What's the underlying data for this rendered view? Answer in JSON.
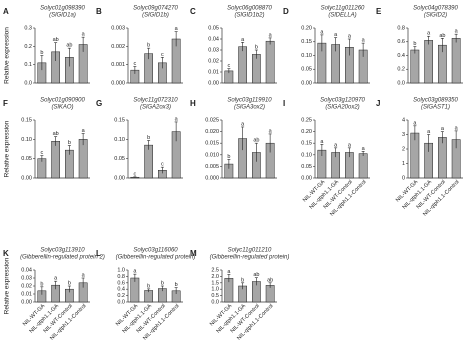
{
  "y_axis_label": "Relative expression",
  "categories": [
    "NIL-WT-GA",
    "NIL-qtph1.1-GA",
    "NIL-WT-Control",
    "NIL-qtph1.1-Control"
  ],
  "chart_data": [
    {
      "type": "bar",
      "letter": "A",
      "title": "Solyc01g098390",
      "subtitle": "(SlGID1a)",
      "color": "#a6a6a6",
      "values": [
        0.11,
        0.17,
        0.14,
        0.21
      ],
      "errors": [
        0.04,
        0.05,
        0.05,
        0.04
      ],
      "annotations": [
        "b",
        "ab",
        "ab",
        "a"
      ],
      "ylim": [
        0,
        0.3
      ],
      "yticks": [
        {
          "value": 0,
          "label": "0.0"
        },
        0.1,
        0.2,
        0.3
      ]
    },
    {
      "type": "bar",
      "letter": "B",
      "title": "Solyc09g074270",
      "subtitle": "(SlGID1b)",
      "color": "#a6a6a6",
      "values": [
        0.0007,
        0.0016,
        0.0011,
        0.0024
      ],
      "errors": [
        0.0002,
        0.0003,
        0.0003,
        0.0004
      ],
      "annotations": [
        "c",
        "b",
        "c",
        "a"
      ],
      "ylim": [
        0,
        0.003
      ],
      "yticks": [
        {
          "value": 0,
          "label": "0.000"
        },
        0.001,
        0.002,
        0.003
      ]
    },
    {
      "type": "bar",
      "letter": "C",
      "title": "Solyc06g008870",
      "subtitle": "(SlGID1b2)",
      "color": "#a6a6a6",
      "values": [
        0.011,
        0.033,
        0.026,
        0.038
      ],
      "errors": [
        0.002,
        0.004,
        0.004,
        0.003
      ],
      "annotations": [
        "c",
        "a",
        "b",
        "a"
      ],
      "ylim": [
        0,
        0.05
      ],
      "yticks": [
        {
          "value": 0,
          "label": "0.00"
        },
        0.01,
        0.02,
        0.03,
        0.04,
        0.05
      ]
    },
    {
      "type": "bar",
      "letter": "D",
      "title": "Solyc11g011260",
      "subtitle": "(SlDELLA)",
      "color": "#a6a6a6",
      "values": [
        0.145,
        0.14,
        0.13,
        0.12
      ],
      "errors": [
        0.03,
        0.025,
        0.03,
        0.025
      ],
      "annotations": [
        "a",
        "a",
        "a",
        "a"
      ],
      "ylim": [
        0,
        0.2
      ],
      "yticks": [
        {
          "value": 0,
          "label": "0.00"
        },
        0.05,
        {
          "value": 0.1,
          "label": "0.10"
        },
        0.15,
        {
          "value": 0.2,
          "label": "0.20"
        }
      ]
    },
    {
      "type": "bar",
      "letter": "E",
      "title": "Solyc04g078390",
      "subtitle": "(SlGID2)",
      "color": "#a6a6a6",
      "values": [
        0.48,
        0.62,
        0.55,
        0.65
      ],
      "errors": [
        0.05,
        0.06,
        0.1,
        0.06
      ],
      "annotations": [
        "b",
        "a",
        "ab",
        "a"
      ],
      "ylim": [
        0,
        0.8
      ],
      "yticks": [
        {
          "value": 0,
          "label": "0.0"
        },
        0.2,
        0.4,
        0.6,
        0.8
      ]
    },
    {
      "type": "bar",
      "letter": "F",
      "title": "Solyc01g090900",
      "subtitle": "(SlKAO)",
      "color": "#a6a6a6",
      "values": [
        0.05,
        0.095,
        0.072,
        0.1
      ],
      "errors": [
        0.008,
        0.012,
        0.012,
        0.015
      ],
      "annotations": [
        "c",
        "ab",
        "b",
        "a"
      ],
      "ylim": [
        0,
        0.15
      ],
      "yticks": [
        {
          "value": 0,
          "label": "0.00"
        },
        0.05,
        {
          "value": 0.1,
          "label": "0.10"
        },
        0.15
      ]
    },
    {
      "type": "bar",
      "letter": "G",
      "title": "Solyc11g072310",
      "subtitle": "(SlGA2ox3)",
      "color": "#a6a6a6",
      "values": [
        0.002,
        0.085,
        0.02,
        0.12
      ],
      "errors": [
        0.001,
        0.012,
        0.008,
        0.025
      ],
      "annotations": [
        "c",
        "b",
        "c",
        "a"
      ],
      "ylim": [
        0,
        0.15
      ],
      "yticks": [
        {
          "value": 0,
          "label": "0.00"
        },
        0.05,
        {
          "value": 0.1,
          "label": "0.10"
        },
        0.15
      ]
    },
    {
      "type": "bar",
      "letter": "H",
      "title": "Solyc03g119910",
      "subtitle": "(SlGA3ox2)",
      "color": "#a6a6a6",
      "values": [
        0.006,
        0.017,
        0.011,
        0.015
      ],
      "errors": [
        0.002,
        0.005,
        0.004,
        0.004
      ],
      "annotations": [
        "b",
        "a",
        "ab",
        "a"
      ],
      "ylim": [
        0,
        0.025
      ],
      "yticks": [
        {
          "value": 0,
          "label": "0.000"
        },
        0.005,
        {
          "value": 0.01,
          "label": "0.010"
        },
        0.015,
        {
          "value": 0.02,
          "label": "0.020"
        },
        0.025
      ]
    },
    {
      "type": "bar",
      "letter": "I",
      "title": "Solyc03g120970",
      "subtitle": "(SlGA20ox2)",
      "color": "#a6a6a6",
      "values": [
        0.12,
        0.11,
        0.11,
        0.105
      ],
      "errors": [
        0.025,
        0.02,
        0.02,
        0.01
      ],
      "annotations": [
        "a",
        "a",
        "a",
        "a"
      ],
      "ylim": [
        0,
        0.25
      ],
      "yticks": [
        {
          "value": 0,
          "label": "0.00"
        },
        0.05,
        {
          "value": 0.1,
          "label": "0.10"
        },
        0.15,
        {
          "value": 0.2,
          "label": "0.20"
        },
        0.25
      ]
    },
    {
      "type": "bar",
      "letter": "J",
      "title": "Solyc03g089350",
      "subtitle": "(SlGAST1)",
      "color": "#a6a6a6",
      "values": [
        3.1,
        2.4,
        2.8,
        2.65
      ],
      "errors": [
        0.5,
        0.6,
        0.4,
        0.6
      ],
      "annotations": [
        "a",
        "a",
        "a",
        "a"
      ],
      "ylim": [
        0,
        4
      ],
      "yticks": [
        0,
        1,
        2,
        3,
        4
      ]
    },
    {
      "type": "bar",
      "letter": "K",
      "title": "Solyc03g113910",
      "subtitle": "(Gibberellin-regulated protein 2)",
      "color": "#a6a6a6",
      "values": [
        0.014,
        0.021,
        0.016,
        0.024
      ],
      "errors": [
        0.005,
        0.005,
        0.004,
        0.006
      ],
      "annotations": [
        "b",
        "a",
        "b",
        "a"
      ],
      "ylim": [
        0,
        0.04
      ],
      "yticks": [
        {
          "value": 0,
          "label": "0.00"
        },
        0.01,
        0.02,
        0.03,
        0.04
      ]
    },
    {
      "type": "bar",
      "letter": "L",
      "title": "Solyc03g116060",
      "subtitle": "(Gibberellin-regulated protein)",
      "color": "#a6a6a6",
      "values": [
        0.75,
        0.36,
        0.42,
        0.35
      ],
      "errors": [
        0.12,
        0.05,
        0.08,
        0.1
      ],
      "annotations": [
        "a",
        "b",
        "b",
        "b"
      ],
      "ylim": [
        0,
        1
      ],
      "yticks": [
        {
          "value": 0,
          "label": "0.0"
        },
        0.2,
        0.4,
        0.6,
        0.8,
        {
          "value": 1,
          "label": "1.0"
        }
      ]
    },
    {
      "type": "bar",
      "letter": "M",
      "title": "Solyc11g011210",
      "subtitle": "(Gibberellin-regulated protein)",
      "color": "#a6a6a6",
      "values": [
        1.85,
        1.25,
        1.6,
        1.3
      ],
      "errors": [
        0.3,
        0.25,
        0.3,
        0.2
      ],
      "annotations": [
        "a",
        "b",
        "ab",
        "ab"
      ],
      "ylim": [
        0,
        2.5
      ],
      "yticks": [
        {
          "value": 0,
          "label": "0.0"
        },
        0.5,
        {
          "value": 1,
          "label": "1.0"
        },
        1.5,
        {
          "value": 2,
          "label": "2.0"
        },
        2.5
      ]
    }
  ]
}
